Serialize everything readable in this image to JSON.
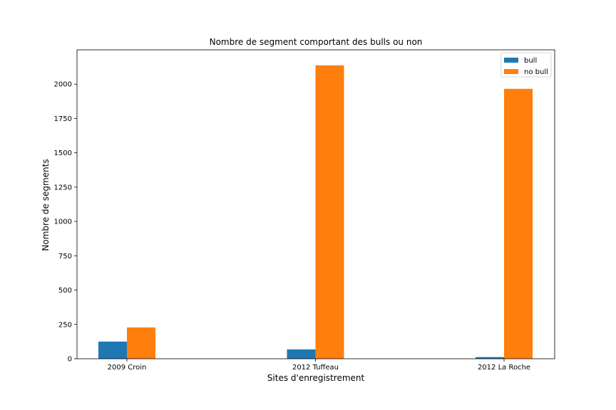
{
  "chart_data": {
    "type": "bar",
    "title": "Nombre de segment comportant des bulls ou non",
    "xlabel": "Sites d'enregistrement",
    "ylabel": "Nombre de segments",
    "categories": [
      "2009 Croin",
      "2012 Tuffeau",
      "2012 La Roche"
    ],
    "series": [
      {
        "name": "bull",
        "color": "#1f77b4",
        "values": [
          125,
          68,
          12
        ]
      },
      {
        "name": "no bull",
        "color": "#ff7f0e",
        "values": [
          228,
          2137,
          1966
        ]
      }
    ],
    "ylim": [
      0,
      2250
    ],
    "yticks": [
      0,
      250,
      500,
      750,
      1000,
      1250,
      1500,
      1750,
      2000
    ],
    "grid": false,
    "legend_position": "top-right"
  }
}
